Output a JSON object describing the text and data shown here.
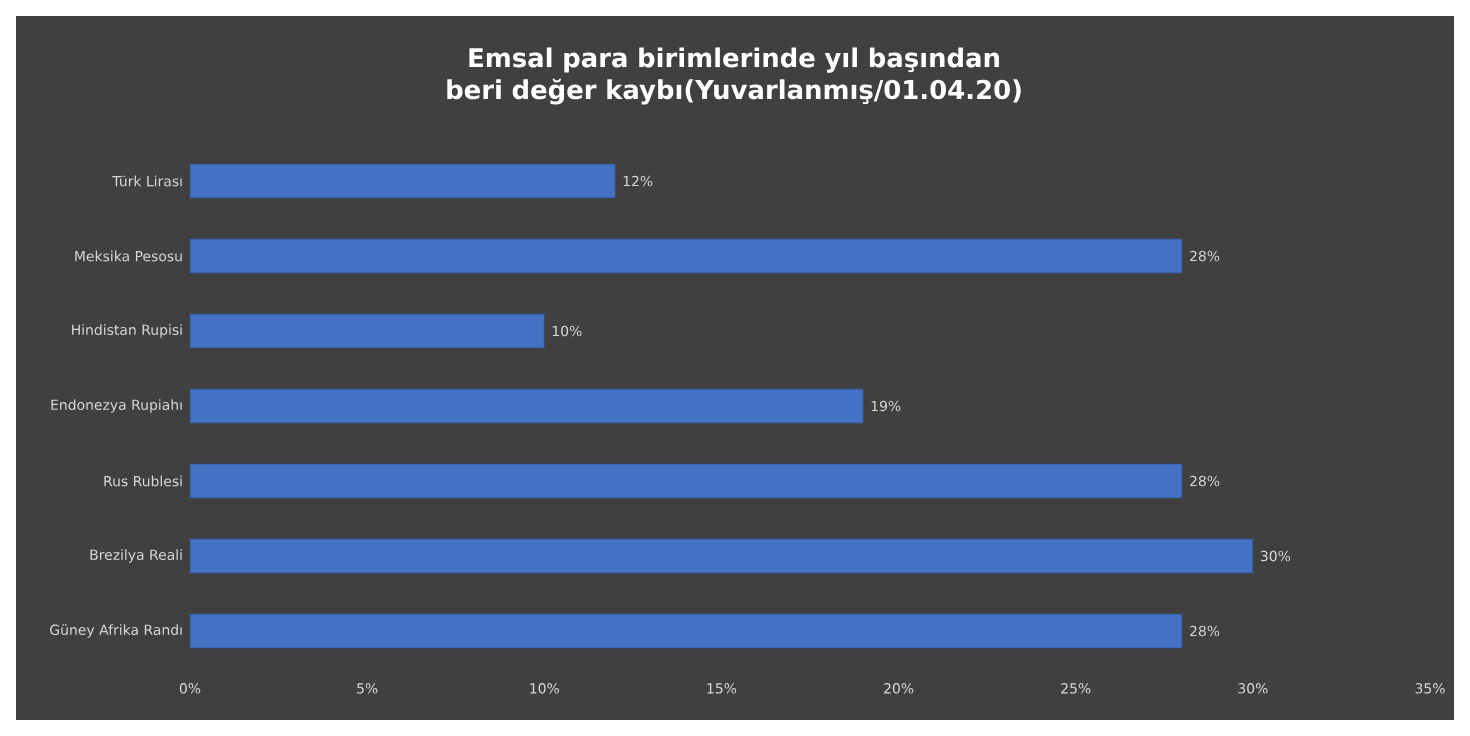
{
  "chart_data": {
    "type": "bar",
    "orientation": "horizontal",
    "title": "Emsal para birimlerinde yıl başından beri değer kaybı(Yuvarlanmış/01.04.20)",
    "categories": [
      "Türk Lirası",
      "Meksika Pesosu",
      "Hindistan Rupisi",
      "Endonezya Rupiahı",
      "Rus Rublesi",
      "Brezilya Reali",
      "Güney Afrika Randı"
    ],
    "values": [
      12,
      28,
      10,
      19,
      28,
      30,
      28
    ],
    "value_labels": [
      "12%",
      "28%",
      "10%",
      "19%",
      "28%",
      "30%",
      "28%"
    ],
    "color": "#4472c4",
    "xlim": [
      0,
      35
    ],
    "xticks": [
      {
        "value": 0,
        "label": "0%"
      },
      {
        "value": 5,
        "label": "5%"
      },
      {
        "value": 10,
        "label": "10%"
      },
      {
        "value": 15,
        "label": "15%"
      },
      {
        "value": 20,
        "label": "20%"
      },
      {
        "value": 25,
        "label": "25%"
      },
      {
        "value": 30,
        "label": "30%"
      },
      {
        "value": 35,
        "label": "35%"
      }
    ]
  }
}
